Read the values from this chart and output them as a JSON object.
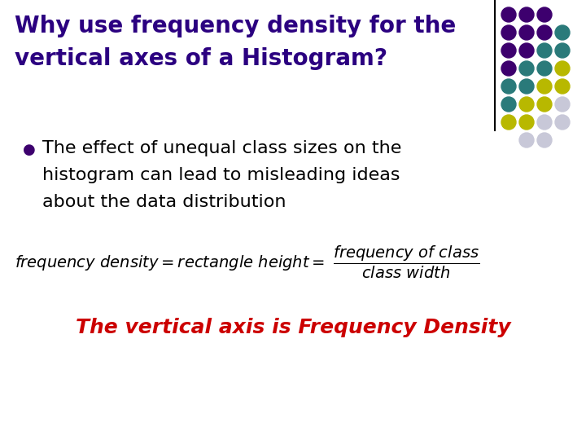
{
  "title_line1": "Why use frequency density for the",
  "title_line2": "vertical axes of a Histogram?",
  "title_color": "#2b0080",
  "title_fontsize": 20,
  "bullet_text_line1": "The effect of unequal class sizes on the",
  "bullet_text_line2": "histogram can lead to misleading ideas",
  "bullet_text_line3": "about the data distribution",
  "bullet_color": "#000000",
  "bullet_fontsize": 16,
  "formula_color": "#000000",
  "formula_fontsize": 14,
  "emphasis_text": "The vertical axis is Frequency Density",
  "emphasis_color": "#cc0000",
  "emphasis_fontsize": 18,
  "bg_color": "#ffffff",
  "divider_color": "#000000",
  "dot_grid": [
    [
      "#3d006e",
      "#3d006e",
      "#3d006e",
      null
    ],
    [
      "#3d006e",
      "#3d006e",
      "#3d006e",
      "#2a7a7a"
    ],
    [
      "#3d006e",
      "#3d006e",
      "#2a7a7a",
      "#2a7a7a"
    ],
    [
      "#3d006e",
      "#2a7a7a",
      "#2a7a7a",
      "#b8b800"
    ],
    [
      "#2a7a7a",
      "#2a7a7a",
      "#b8b800",
      "#b8b800"
    ],
    [
      "#2a7a7a",
      "#b8b800",
      "#b8b800",
      "#c8c8d8"
    ],
    [
      "#b8b800",
      "#b8b800",
      "#c8c8d8",
      "#c8c8d8"
    ],
    [
      null,
      "#c8c8d8",
      "#c8c8d8",
      null
    ]
  ]
}
